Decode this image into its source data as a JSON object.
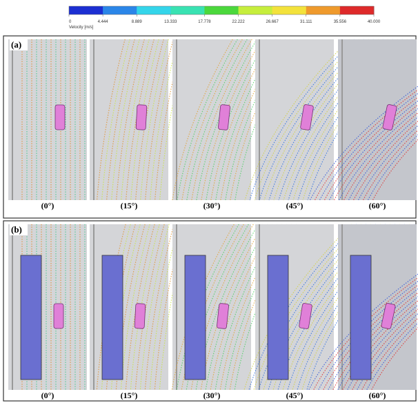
{
  "colorbar": {
    "label": "Velocity [m/s]",
    "ticks": [
      0,
      4.444,
      8.889,
      13.333,
      17.778,
      22.222,
      26.667,
      31.111,
      35.556,
      {
        "value": 40,
        "label": "40.000"
      }
    ],
    "colors": [
      "#1c2fd2",
      "#2b86e8",
      "#34d5ea",
      "#39e2b2",
      "#4bd83c",
      "#c6ee3c",
      "#f3e23b",
      "#ef9a2c",
      "#de2a2a"
    ]
  },
  "panels": [
    {
      "label": "(a)",
      "captions": [
        "(0°)",
        "(15°)",
        "(30°)",
        "(45°)",
        "(60°)"
      ]
    },
    {
      "label": "(b)",
      "captions": [
        "(0°)",
        "(15°)",
        "(30°)",
        "(45°)",
        "(60°)"
      ]
    }
  ]
}
